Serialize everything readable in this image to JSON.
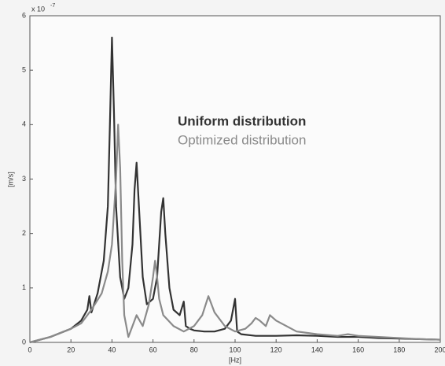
{
  "chart_data": {
    "type": "line",
    "x_label": "[Hz]",
    "y_label": "[m/s]",
    "y_exponent": "x 10",
    "y_exponent_power": "-7",
    "xlim": [
      0,
      200
    ],
    "xticks": [
      0,
      20,
      40,
      60,
      80,
      100,
      120,
      140,
      160,
      180,
      200
    ],
    "ylim": [
      0,
      6
    ],
    "yticks": [
      0,
      1,
      2,
      3,
      4,
      5,
      6
    ],
    "series": [
      {
        "name": "Uniform distribution",
        "color": "#333333",
        "x": [
          0,
          10,
          20,
          25,
          28,
          29,
          30,
          33,
          36,
          38,
          39,
          40,
          41,
          42,
          44,
          46,
          48,
          50,
          51,
          52,
          53,
          55,
          57,
          60,
          62,
          63,
          64,
          65,
          66,
          68,
          70,
          73,
          75,
          76,
          78,
          80,
          85,
          90,
          95,
          98,
          100,
          101,
          103,
          110,
          120,
          130,
          140,
          150,
          160,
          170,
          180,
          190,
          200
        ],
        "values": [
          0,
          0.1,
          0.25,
          0.4,
          0.6,
          0.85,
          0.55,
          0.9,
          1.5,
          2.5,
          4.0,
          5.6,
          4.2,
          2.5,
          1.2,
          0.8,
          1.0,
          1.8,
          2.8,
          3.3,
          2.6,
          1.2,
          0.7,
          0.8,
          1.2,
          1.8,
          2.4,
          2.65,
          2.0,
          1.0,
          0.6,
          0.5,
          0.75,
          0.3,
          0.25,
          0.22,
          0.2,
          0.2,
          0.25,
          0.4,
          0.8,
          0.2,
          0.15,
          0.12,
          0.12,
          0.13,
          0.12,
          0.1,
          0.1,
          0.08,
          0.07,
          0.06,
          0.05
        ]
      },
      {
        "name": "Optimized distribution",
        "color": "#8a8a8a",
        "x": [
          0,
          10,
          20,
          25,
          28,
          30,
          35,
          38,
          40,
          42,
          43,
          44,
          45,
          46,
          48,
          50,
          52,
          55,
          58,
          60,
          61,
          62,
          63,
          65,
          70,
          75,
          80,
          84,
          87,
          90,
          95,
          100,
          105,
          108,
          110,
          112,
          115,
          117,
          120,
          130,
          140,
          150,
          155,
          160,
          170,
          180,
          190,
          200
        ],
        "values": [
          0,
          0.1,
          0.25,
          0.35,
          0.5,
          0.6,
          0.9,
          1.3,
          1.8,
          3.0,
          4.0,
          3.2,
          1.5,
          0.5,
          0.1,
          0.3,
          0.5,
          0.3,
          0.7,
          1.2,
          1.5,
          1.2,
          0.8,
          0.5,
          0.3,
          0.2,
          0.3,
          0.5,
          0.85,
          0.55,
          0.3,
          0.2,
          0.25,
          0.35,
          0.45,
          0.4,
          0.3,
          0.5,
          0.4,
          0.2,
          0.15,
          0.12,
          0.15,
          0.12,
          0.1,
          0.08,
          0.06,
          0.05
        ]
      }
    ]
  }
}
